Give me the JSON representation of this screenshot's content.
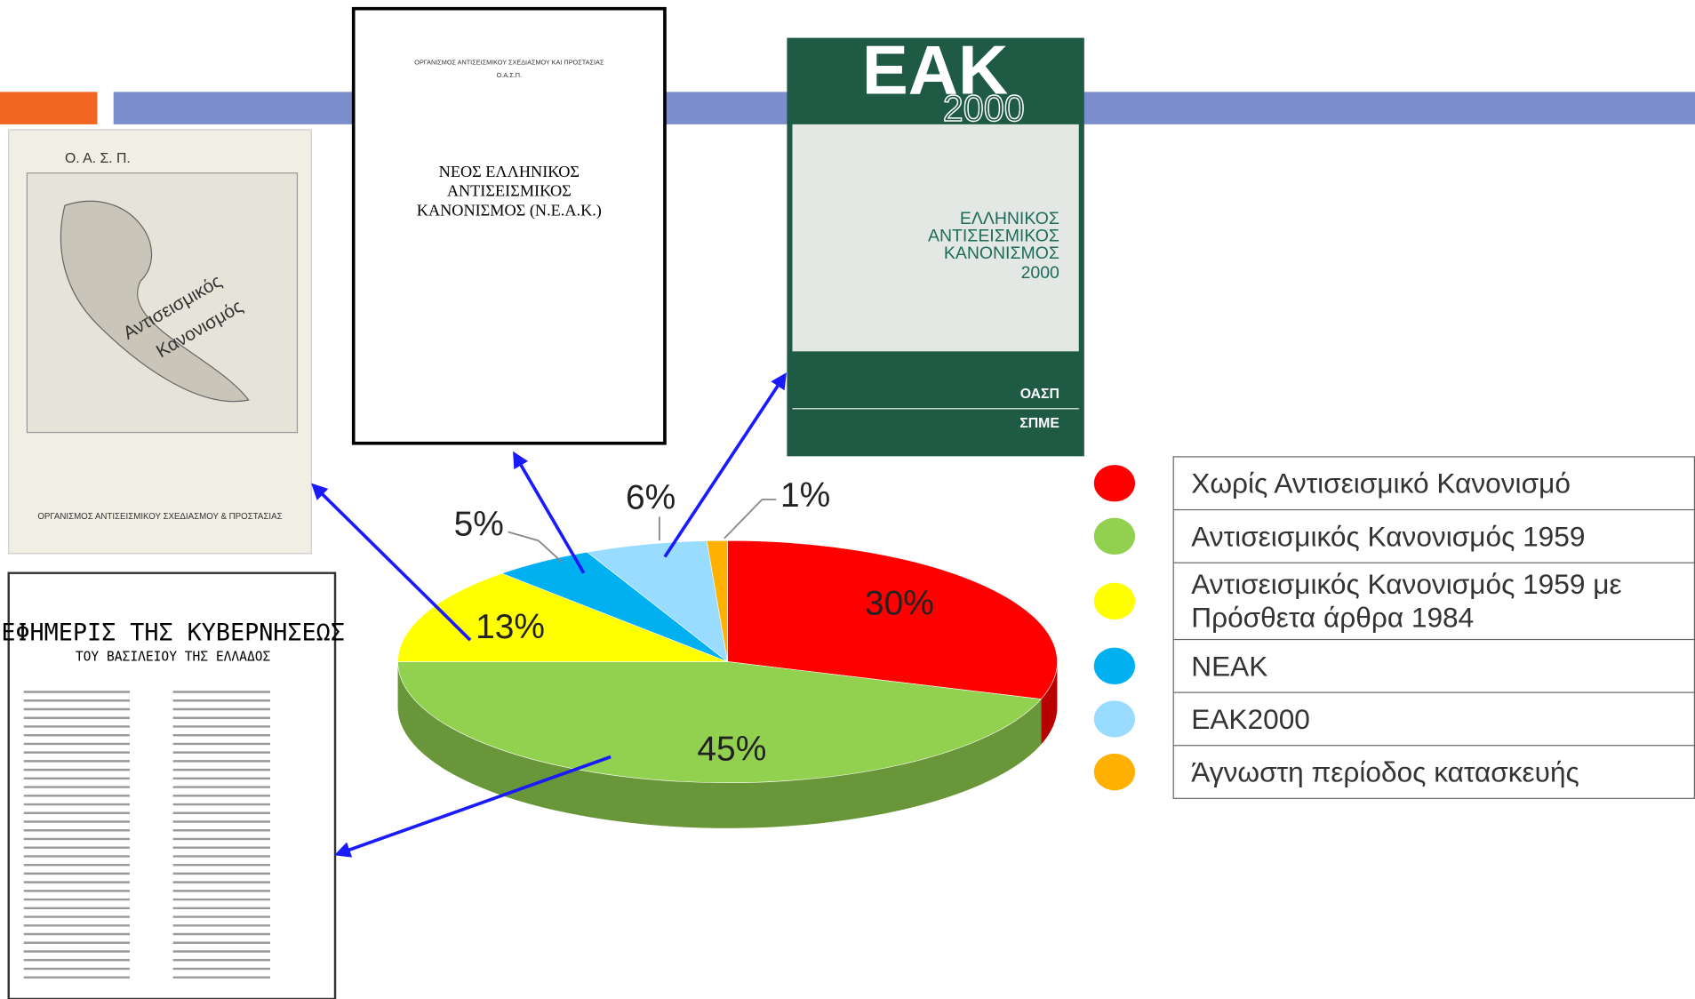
{
  "chart_data": {
    "type": "pie3d",
    "categories": [
      "Χωρίς Αντισεισμικό Κανονισμό",
      "Αντισεισμικός  Κανονισμός 1959",
      "Αντισεισμικός  Κανονισμός 1959 με Πρόσθετα άρθρα 1984",
      "ΝΕΑΚ",
      "ΕΑΚ2000",
      "Άγνωστη περίοδος κατασκευής"
    ],
    "values": [
      30,
      45,
      13,
      5,
      6,
      1
    ],
    "value_labels": [
      "30%",
      "45%",
      "13%",
      "5%",
      "6%",
      "1%"
    ],
    "colors": [
      "#ff0000",
      "#92d050",
      "#ffff00",
      "#00b0f0",
      "#99dcff",
      "#ffb000"
    ]
  },
  "documents": {
    "map_code": {
      "org": "Ο. Α. Σ. Π.",
      "title1": "Αντισεισμικός",
      "title2": "Κανονισμός",
      "footer": "ΟΡΓΑΝΙΣΜΟΣ ΑΝΤΙΣΕΙΣΜΙΚΟΥ ΣΧΕΔΙΑΣΜΟΥ & ΠΡΟΣΤΑΣΙΑΣ"
    },
    "neak": {
      "header": "ΟΡΓΑΝΙΣΜΟΣ ΑΝΤΙΣΕΙΣΜΙΚΟΥ ΣΧΕΔΙΑΣΜΟΥ ΚΑΙ ΠΡΟΣΤΑΣΙΑΣ",
      "org": "Ο.Α.Σ.Π.",
      "line1": "ΝΕΟΣ ΕΛΛΗΝΙΚΟΣ",
      "line2": "ΑΝΤΙΣΕΙΣΜΙΚΟΣ",
      "line3": "ΚΑΝΟΝΙΣΜΟΣ (Ν.Ε.Α.Κ.)"
    },
    "eak": {
      "name": "ΕΑΚ",
      "year": "2000",
      "line1": "ΕΛΛΗΝΙΚΟΣ",
      "line2": "ΑΝΤΙΣΕΙΣΜΙΚΟΣ",
      "line3": "ΚΑΝΟΝΙΣΜΟΣ",
      "line4": "2000",
      "org1": "ΟΑΣΠ",
      "org2": "ΣΠΜΕ"
    },
    "gazette": {
      "title": "ΕΦΗΜΕΡΙΣ ΤΗΣ ΚΥΒΕΡΝΗΣΕΩΣ",
      "subtitle": "ΤΟΥ ΒΑΣΙΛΕΙΟΥ ΤΗΣ ΕΛΛΑΔΟΣ"
    }
  }
}
